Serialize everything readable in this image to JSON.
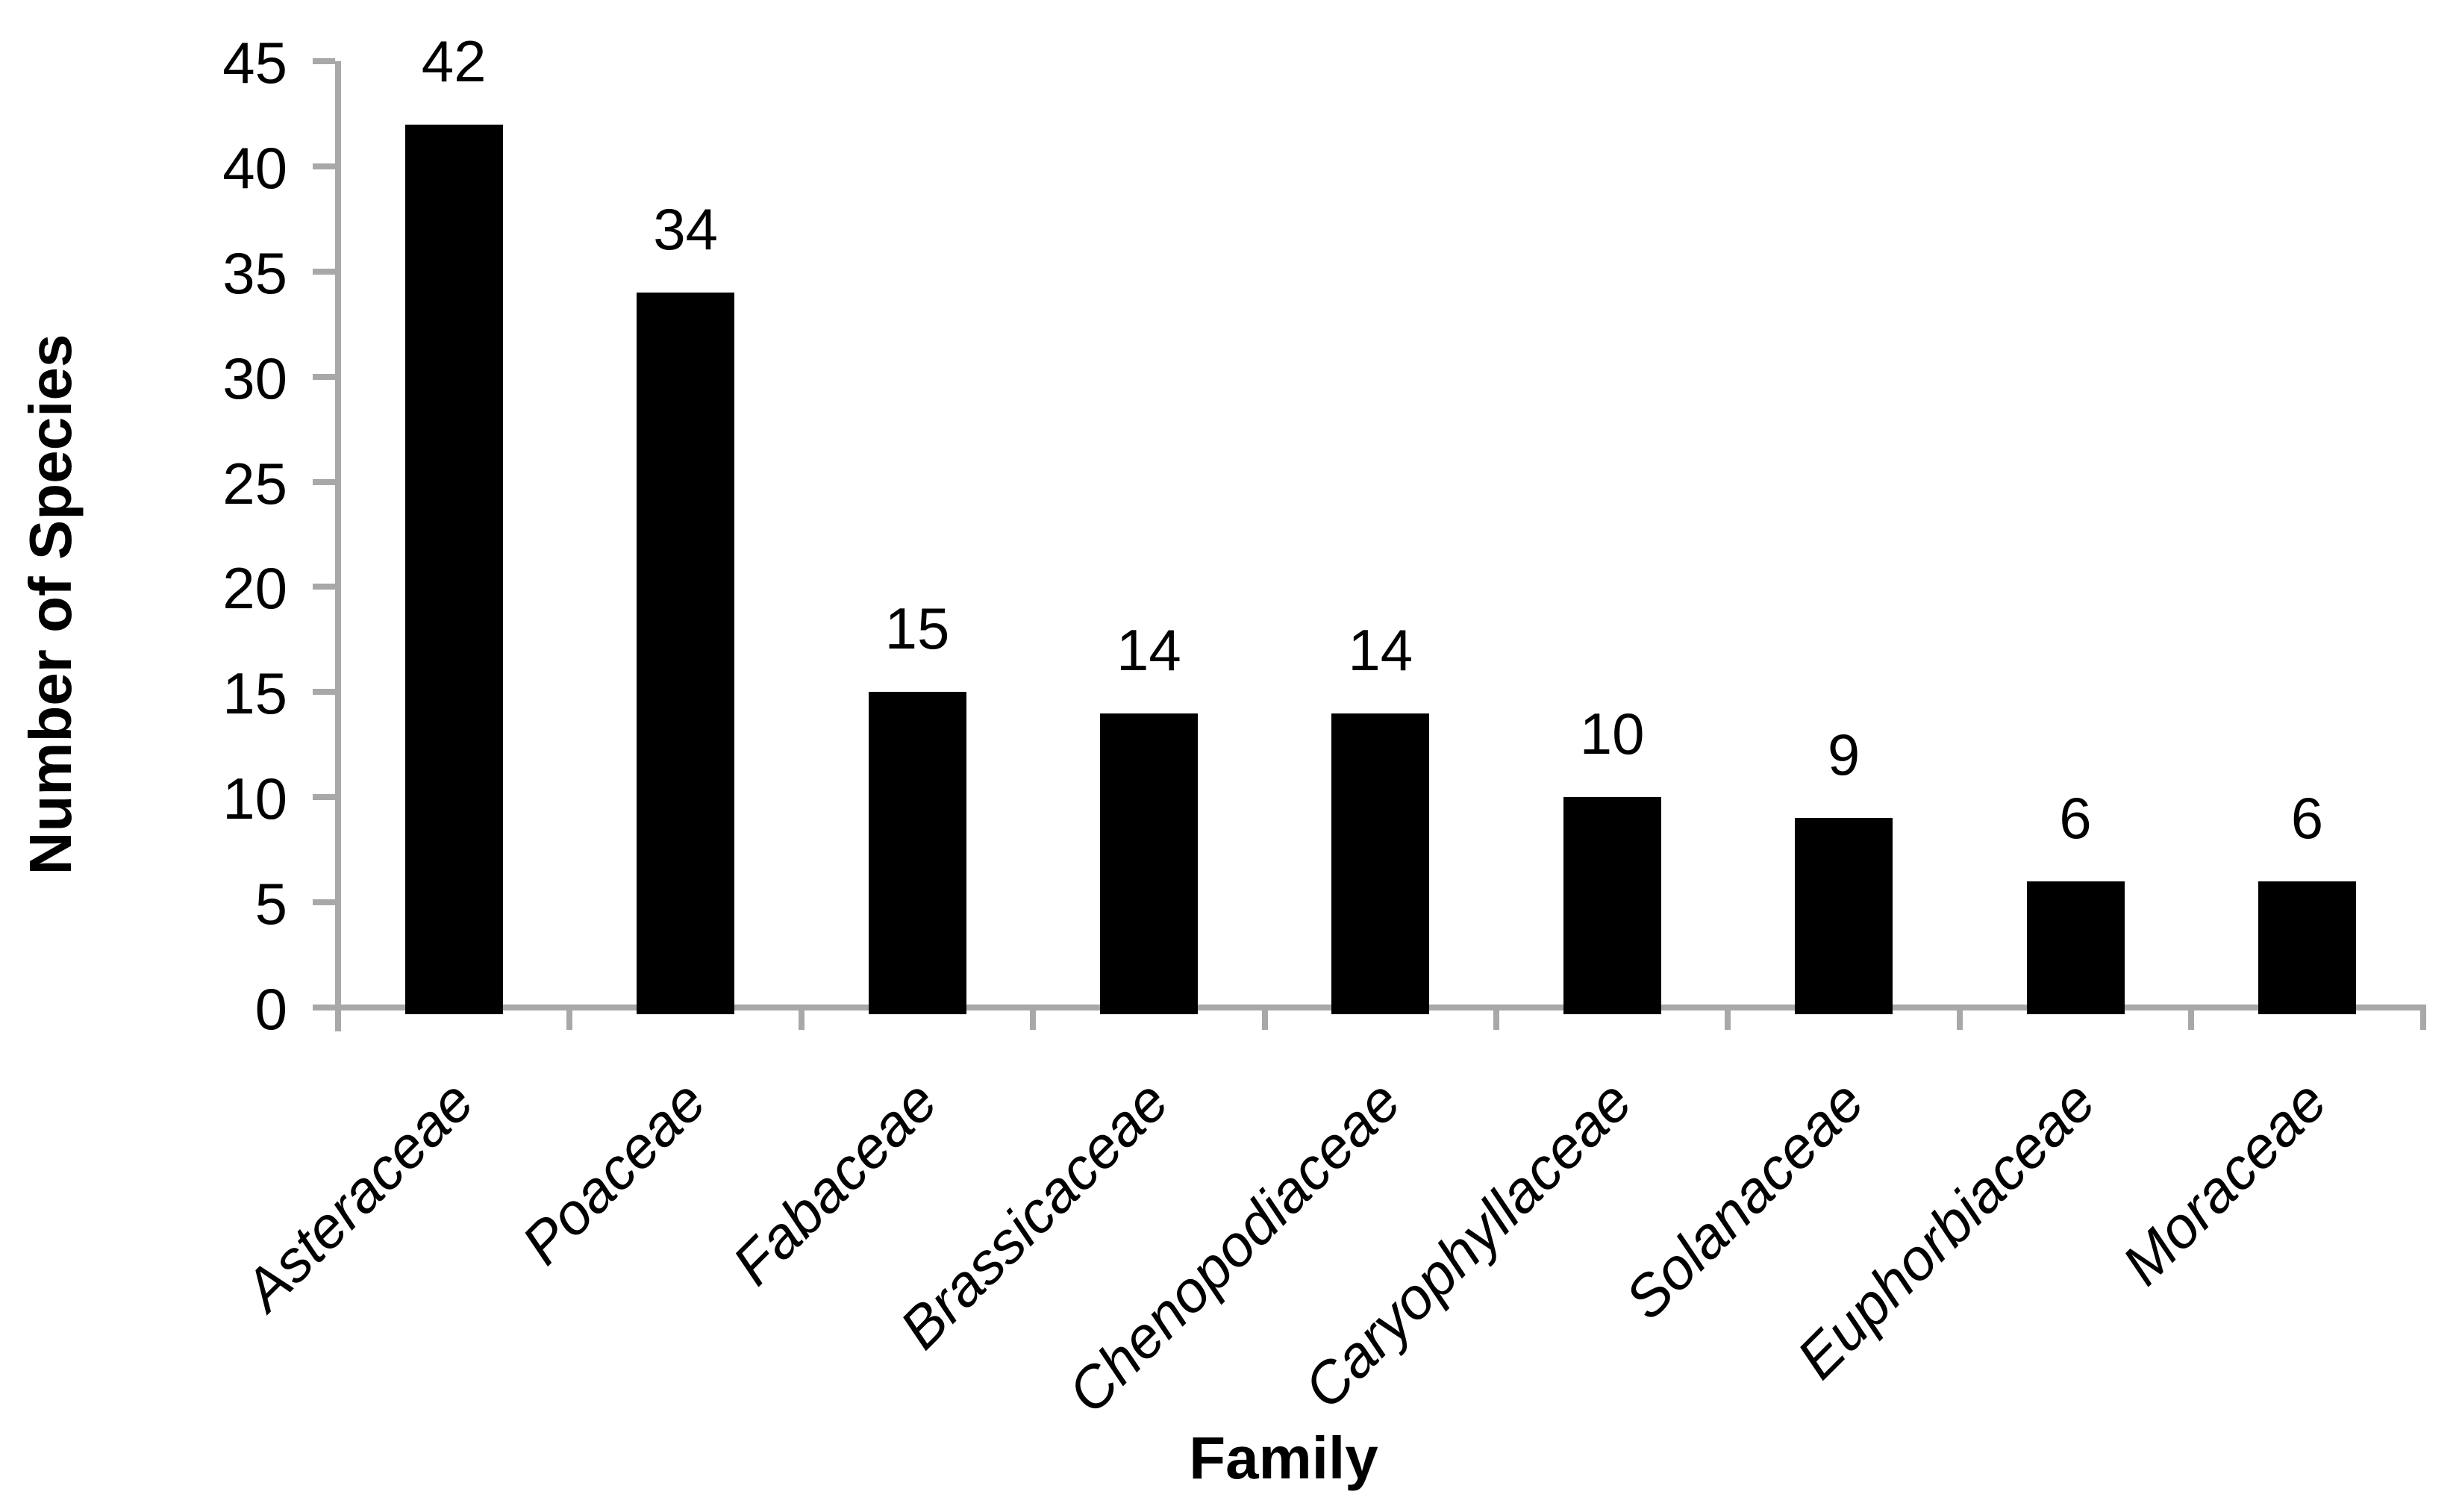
{
  "chart_data": {
    "type": "bar",
    "categories": [
      "Asteraceae",
      "Poaceae",
      "Fabaceae",
      "Brassicaceae",
      "Chenopodiaceae",
      "Caryophyllaceae",
      "Solanaceae",
      "Euphorbiaceae",
      "Moraceae"
    ],
    "values": [
      42,
      34,
      15,
      14,
      14,
      10,
      9,
      6,
      6
    ],
    "data_labels": [
      "42",
      "34",
      "15",
      "14",
      "14",
      "10",
      "9",
      "6",
      "6"
    ],
    "title": "",
    "xlabel": "Family",
    "ylabel": "Number of Species",
    "ylim": [
      0,
      45
    ],
    "yticks": [
      0,
      5,
      10,
      15,
      20,
      25,
      30,
      35,
      40,
      45
    ],
    "grid": false,
    "legend_position": "none",
    "bar_color": "#000000",
    "axis_color": "#a8a8a8",
    "text_color": "#000000",
    "background_color": "#ffffff"
  }
}
